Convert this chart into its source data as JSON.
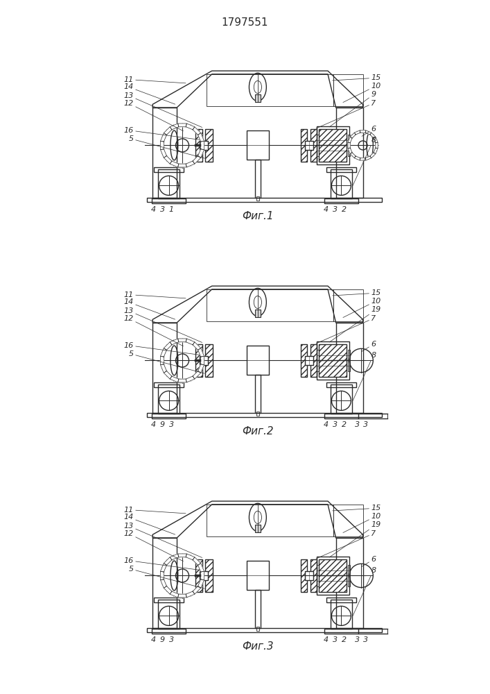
{
  "title": "1797551",
  "line_color": "#2a2a2a",
  "fig_captions": [
    "Фиг.1",
    "Фиг.2",
    "Фиг.3"
  ],
  "lw_main": 1.0,
  "lw_thin": 0.6,
  "hatch": "////",
  "fig1_right_labels": [
    "15",
    "10",
    "9",
    "7",
    "6",
    "8"
  ],
  "fig23_right_labels": [
    "15",
    "10",
    "19",
    "7",
    "6",
    "8"
  ],
  "left_labels": [
    "11",
    "14",
    "13",
    "12",
    "16",
    "5"
  ],
  "fig1_bottom_left": [
    "4",
    "3",
    "1"
  ],
  "fig23_bottom_left": [
    "4",
    "9",
    "3"
  ],
  "bottom_right": [
    "4",
    "3",
    "2"
  ],
  "fig23_extra_bottom": [
    "3",
    "3"
  ]
}
